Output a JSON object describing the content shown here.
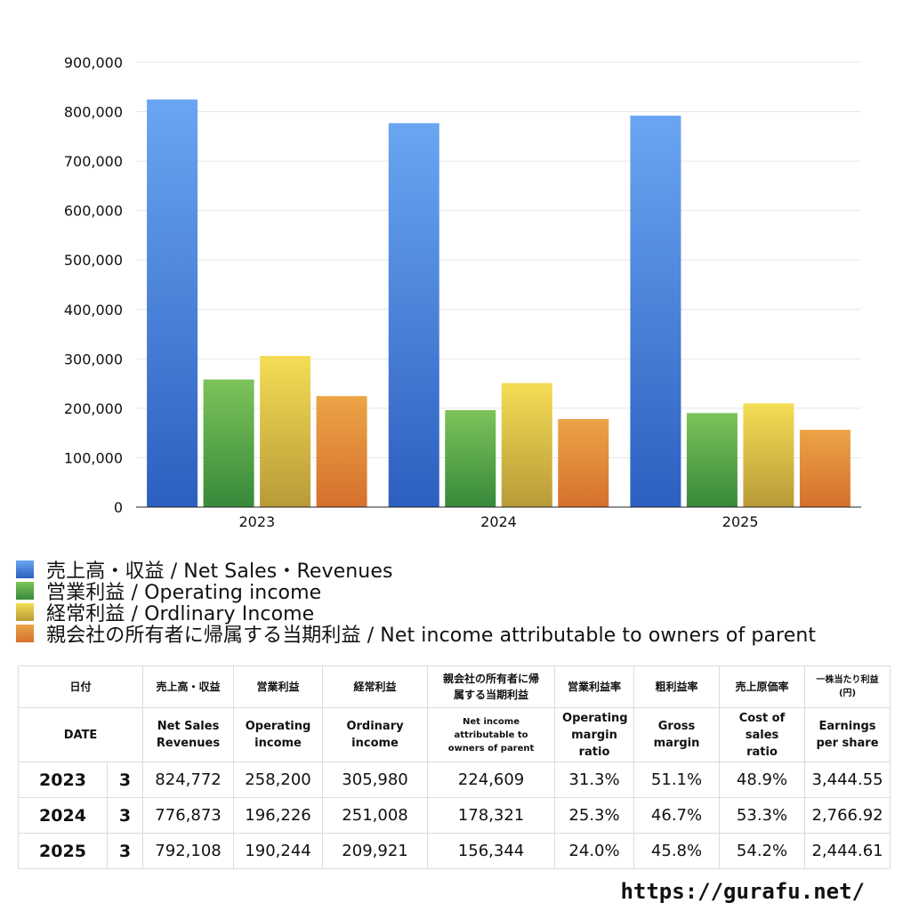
{
  "chart_data": {
    "type": "bar",
    "categories": [
      "2023",
      "2024",
      "2025"
    ],
    "series": [
      {
        "name": "売上高・収益 / Net Sales・Revenues",
        "values": [
          824772,
          776873,
          792108
        ],
        "color_top": "#6aa6f2",
        "color_bottom": "#2c5fc0"
      },
      {
        "name": "営業利益 / Operating income",
        "values": [
          258200,
          196226,
          190244
        ],
        "color_top": "#7dc35a",
        "color_bottom": "#37893a"
      },
      {
        "name": "経常利益 / Ordlinary Income",
        "values": [
          305980,
          251008,
          209921
        ],
        "color_top": "#f4dd55",
        "color_bottom": "#b99a38"
      },
      {
        "name": "親会社の所有者に帰属する当期利益 / Net income attributable to owners of parent",
        "values": [
          224609,
          178321,
          156344
        ],
        "color_top": "#eba446",
        "color_bottom": "#d6702d"
      }
    ],
    "yticks": [
      "0",
      "100,000",
      "200,000",
      "300,000",
      "400,000",
      "500,000",
      "600,000",
      "700,000",
      "800,000",
      "900,000"
    ],
    "ylim": [
      0,
      900000
    ],
    "grid": true,
    "legend_position": "bottom-left"
  },
  "table": {
    "header_ja": [
      "日付",
      "売上高・収益",
      "営業利益",
      "経常利益",
      "親会社の所有者に帰属する当期利益",
      "営業利益率",
      "粗利益率",
      "売上原価率",
      "一株当たり利益(円)"
    ],
    "header_en": [
      "DATE",
      "Net Sales Revenues",
      "Operating income",
      "Ordinary income",
      "Net income attributable to owners of parent",
      "Operating margin ratio",
      "Gross margin",
      "Cost of sales ratio",
      "Earnings per share"
    ],
    "rows": [
      {
        "year": "2023",
        "month": "3",
        "sales": "824,772",
        "op": "258,200",
        "ord": "305,980",
        "net": "224,609",
        "opm": "31.3%",
        "gm": "51.1%",
        "cos": "48.9%",
        "eps": "3,444.55"
      },
      {
        "year": "2024",
        "month": "3",
        "sales": "776,873",
        "op": "196,226",
        "ord": "251,008",
        "net": "178,321",
        "opm": "25.3%",
        "gm": "46.7%",
        "cos": "53.3%",
        "eps": "2,766.92"
      },
      {
        "year": "2025",
        "month": "3",
        "sales": "792,108",
        "op": "190,244",
        "ord": "209,921",
        "net": "156,344",
        "opm": "24.0%",
        "gm": "45.8%",
        "cos": "54.2%",
        "eps": "2,444.61"
      }
    ]
  },
  "footer": {
    "url": "https://gurafu.net/"
  }
}
